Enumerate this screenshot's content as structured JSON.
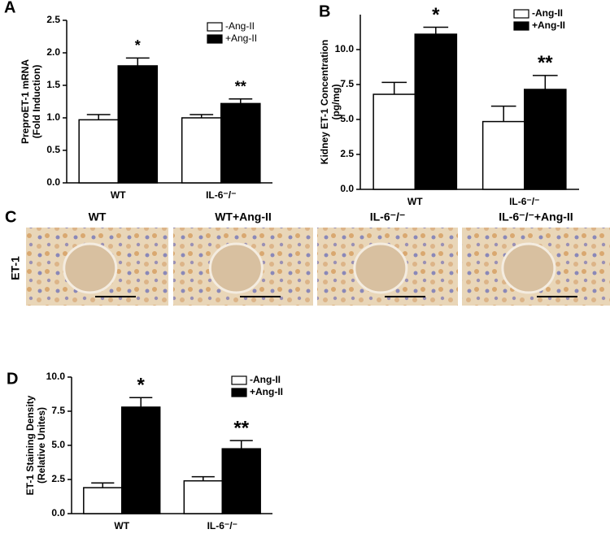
{
  "chart_data": [
    {
      "type": "bar",
      "panel_label": "A",
      "ylabel": [
        "PreproET-1 mRNA",
        "(Fold Induction)"
      ],
      "categories": [
        "WT",
        "IL-6⁻/⁻"
      ],
      "series": [
        {
          "name": "-Ang-II",
          "color": "#ffffff",
          "values": [
            0.97,
            1.0
          ],
          "errors": [
            0.08,
            0.05
          ]
        },
        {
          "name": "+Ang-II",
          "color": "#000000",
          "values": [
            1.8,
            1.22
          ],
          "errors": [
            0.12,
            0.07
          ]
        }
      ],
      "annotations": [
        "*",
        "**"
      ],
      "ylim": [
        0,
        2.5
      ],
      "yticks": [
        {
          "value": 0,
          "label": "0.0"
        },
        {
          "value": 0.5,
          "label": "0.5"
        },
        {
          "value": 1,
          "label": "1.0"
        },
        {
          "value": 1.5,
          "label": "1.5"
        },
        {
          "value": 2,
          "label": "2.0"
        },
        {
          "value": 2.5,
          "label": "2.5"
        }
      ]
    },
    {
      "type": "bar",
      "panel_label": "B",
      "ylabel": [
        "Kidney ET-1 Concentration",
        "(pg/mg)"
      ],
      "categories": [
        "WT",
        "IL-6⁻/⁻"
      ],
      "series": [
        {
          "name": "-Ang-II",
          "color": "#ffffff",
          "values": [
            6.8,
            4.85
          ],
          "errors": [
            0.85,
            1.1
          ]
        },
        {
          "name": "+Ang-II",
          "color": "#000000",
          "values": [
            11.1,
            7.15
          ],
          "errors": [
            0.5,
            1.0
          ]
        }
      ],
      "annotations": [
        "*",
        "**"
      ],
      "ylim": [
        0,
        12.5
      ],
      "yticks": [
        {
          "value": 0,
          "label": "0.0"
        },
        {
          "value": 2.5,
          "label": "2.5"
        },
        {
          "value": 5,
          "label": "5.0"
        },
        {
          "value": 7.5,
          "label": "7.5"
        },
        {
          "value": 10,
          "label": "10.0"
        }
      ]
    },
    {
      "type": "bar",
      "panel_label": "D",
      "ylabel": [
        "ET-1 Staining Density",
        "(Relative Unites)"
      ],
      "categories": [
        "WT",
        "IL-6⁻/⁻"
      ],
      "series": [
        {
          "name": "-Ang-II",
          "color": "#ffffff",
          "values": [
            1.9,
            2.4
          ],
          "errors": [
            0.35,
            0.3
          ]
        },
        {
          "name": "+Ang-II",
          "color": "#000000",
          "values": [
            7.8,
            4.75
          ],
          "errors": [
            0.7,
            0.6
          ]
        }
      ],
      "annotations": [
        "*",
        "**"
      ],
      "ylim": [
        0,
        10
      ],
      "yticks": [
        {
          "value": 0,
          "label": "0.0"
        },
        {
          "value": 2.5,
          "label": "2.5"
        },
        {
          "value": 5,
          "label": "5.0"
        },
        {
          "value": 7.5,
          "label": "7.5"
        },
        {
          "value": 10,
          "label": "10.0"
        }
      ]
    }
  ],
  "panel_c": {
    "label": "C",
    "row_label": "ET-1",
    "titles": [
      "WT",
      "WT+Ang-II",
      "IL-6⁻/⁻",
      "IL-6⁻/⁻+Ang-II"
    ]
  }
}
